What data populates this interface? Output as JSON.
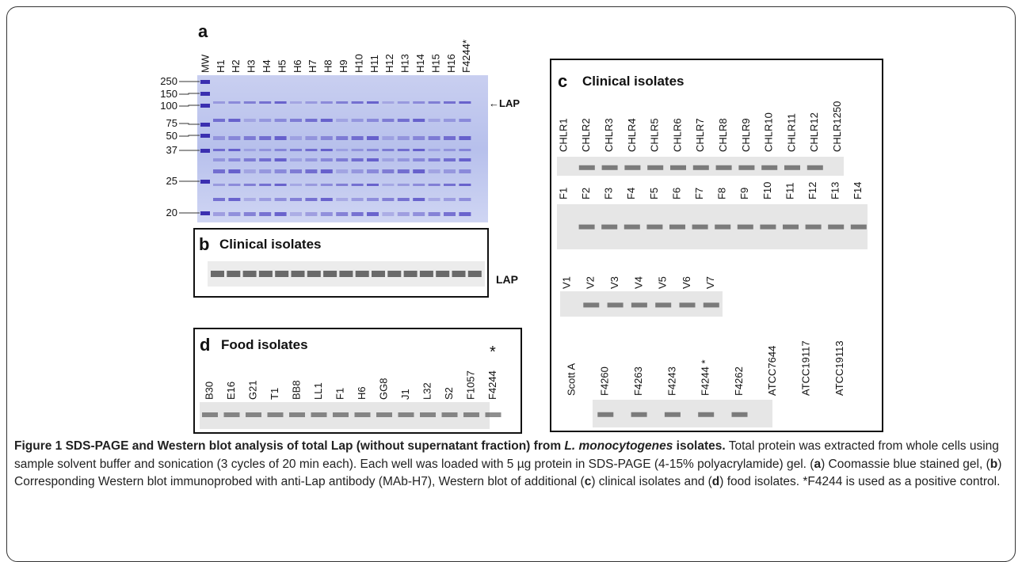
{
  "panel_a": {
    "letter": "a",
    "lanes": [
      "MW",
      "H1",
      "H2",
      "H3",
      "H4",
      "H5",
      "H6",
      "H7",
      "H8",
      "H9",
      "H10",
      "H11",
      "H12",
      "H13",
      "H14",
      "H15",
      "H16",
      "F4244*"
    ],
    "mw_labels": [
      "250",
      "150",
      "100",
      "75",
      "50",
      "37",
      "25",
      "20"
    ],
    "band_label": "←LAP"
  },
  "panel_b": {
    "letter": "b",
    "title": "Clinical isolates",
    "band_label": "LAP"
  },
  "panel_c": {
    "letter": "c",
    "title": "Clinical isolates",
    "rows": [
      [
        "CHLR1",
        "CHLR2",
        "CHLR3",
        "CHLR4",
        "CHLR5",
        "CHLR6",
        "CHLR7",
        "CHLR8",
        "CHLR9",
        "CHLR10",
        "CHLR11",
        "CHLR12",
        "CHLR1250"
      ],
      [
        "F1",
        "F2",
        "F3",
        "F4",
        "F5",
        "F6",
        "F7",
        "F8",
        "F9",
        "F10",
        "F11",
        "F12",
        "F13",
        "F14"
      ],
      [
        "V1",
        "V2",
        "V3",
        "V4",
        "V5",
        "V6",
        "V7"
      ],
      [
        "Scott A",
        "F4260",
        "F4263",
        "F4243",
        "F4244 *",
        "F4262",
        "ATCC7644",
        "ATCC19117",
        "ATCC19113"
      ]
    ]
  },
  "panel_d": {
    "letter": "d",
    "title": "Food isolates",
    "marker": "*",
    "lanes": [
      "B30",
      "E16",
      "G21",
      "T1",
      "BB8",
      "LL1",
      "F1",
      "H6",
      "GG8",
      "J1",
      "L32",
      "S2",
      "F1057",
      "F4244"
    ]
  },
  "caption": [
    "Figure 1 SDS-PAGE and Western blot analysis of total Lap (without supernatant fraction) from ",
    "L. monocytogenes",
    " isolates.",
    " Total protein was extracted from whole cells using sample solvent buffer and sonication (3 cycles of 20 min each). Each well was loaded with 5 µg protein in SDS-PAGE (4-15% polyacrylamide) gel. (",
    "a",
    ") Coomassie blue stained gel, (",
    "b",
    ") Corresponding Western blot immunoprobed with anti-Lap antibody (MAb-H7), Western blot of additional (",
    "c",
    ") clinical isolates and (",
    "d",
    ") food isolates. *F4244 is used as a positive control."
  ]
}
